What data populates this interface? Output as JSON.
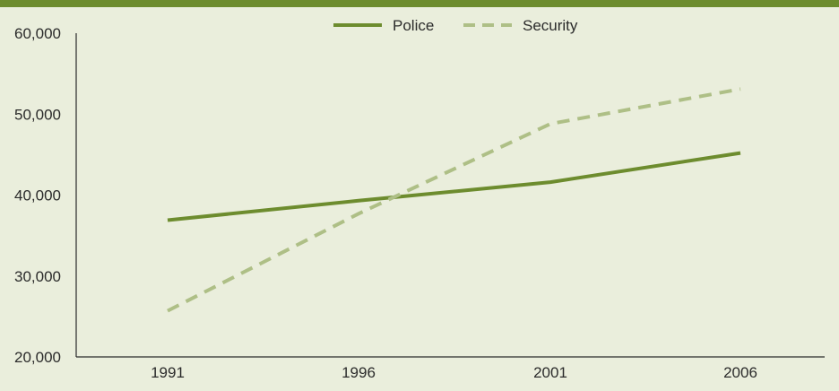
{
  "colors": {
    "background": "#eaeedc",
    "top_bar": "#6d8c2e",
    "police": "#6d8c2e",
    "security": "#aebf86",
    "axis": "#2b2b2b"
  },
  "chart_data": {
    "type": "line",
    "title": "",
    "xlabel": "",
    "ylabel": "",
    "categories": [
      "1991",
      "1996",
      "2001",
      "2006"
    ],
    "ylim": [
      20000,
      60000
    ],
    "yticks": [
      20000,
      30000,
      40000,
      50000,
      60000
    ],
    "ytick_labels": [
      "20,000",
      "30,000",
      "40,000",
      "50,000",
      "60,000"
    ],
    "grid": false,
    "legend_position": "top-center",
    "series": [
      {
        "name": "Police",
        "style": "solid",
        "color": "#6d8c2e",
        "values": [
          36900,
          39300,
          41600,
          45200
        ]
      },
      {
        "name": "Security",
        "style": "dashed",
        "color": "#aebf86",
        "values": [
          25700,
          37700,
          48800,
          53100
        ]
      }
    ]
  }
}
